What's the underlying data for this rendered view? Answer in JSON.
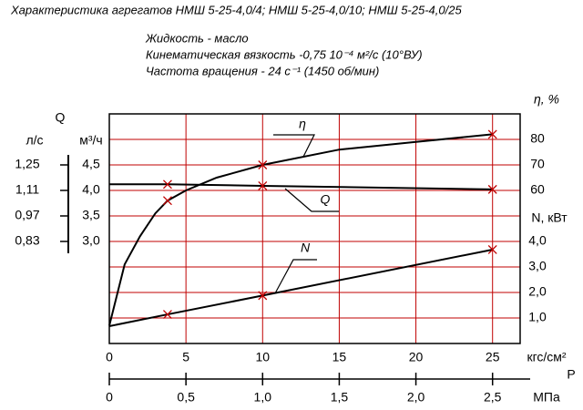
{
  "chart_data": {
    "type": "line",
    "title": "Характеристика агрегатов НМШ 5-25-4,0/4; НМШ 5-25-4,0/10; НМШ 5-25-4,0/25",
    "subtitle": [
      "Жидкость - масло",
      "Кинематическая вязкость -0,75 10⁻⁴ м²/с (10°ВУ)",
      "Частота вращения - 24 с⁻¹ (1450 об/мин)"
    ],
    "grid": true,
    "grid_color": "#c00000",
    "x_label": "кгс/см²",
    "xlim": [
      0,
      26.8
    ],
    "xticks": [
      0,
      5,
      10,
      15,
      20,
      25
    ],
    "p_label": "P",
    "x2_label": "МПа",
    "x2lim": [
      0,
      2.68
    ],
    "x2ticks": [
      0,
      {
        "value": 0.5,
        "label": "0,5"
      },
      {
        "value": 1.0,
        "label": "1,0"
      },
      {
        "value": 1.5,
        "label": "1,5"
      },
      {
        "value": 2.0,
        "label": "2,0"
      },
      {
        "value": 2.5,
        "label": "2,5"
      }
    ],
    "y_axes": [
      {
        "label": "Q",
        "unit": "м³/ч",
        "lim": [
          1.0,
          5.5
        ],
        "ticks": [
          {
            "value": 4.5,
            "label": "4,5"
          },
          {
            "value": 4.0,
            "label": "4,0"
          },
          {
            "value": 3.5,
            "label": "3,5"
          },
          {
            "value": 3.0,
            "label": "3,0"
          }
        ]
      },
      {
        "unit": "л/с",
        "lim": [
          0.27,
          1.53
        ],
        "ticks": [
          {
            "value": 1.25,
            "label": "1,25"
          },
          {
            "value": 1.11,
            "label": "1,11"
          },
          {
            "value": 0.97,
            "label": "0,97"
          },
          {
            "value": 0.83,
            "label": "0,83"
          }
        ]
      },
      {
        "label": "η, %",
        "lim": [
          0,
          90
        ],
        "ticks": [
          80,
          70,
          60
        ]
      },
      {
        "label": "N, кВт",
        "lim": [
          0,
          9
        ],
        "ticks": [
          {
            "value": 4,
            "label": "4,0"
          },
          {
            "value": 3,
            "label": "3,0"
          },
          {
            "value": 2,
            "label": "2,0"
          },
          {
            "value": 1,
            "label": "1,0"
          }
        ]
      }
    ],
    "series": [
      {
        "name": "η",
        "axis": 2,
        "color": "#000000",
        "marker_color": "#c00000",
        "x": [
          0,
          1,
          2,
          3,
          3.8,
          5,
          7,
          10,
          15,
          20,
          25
        ],
        "values": [
          7,
          31,
          42,
          51,
          56,
          60,
          65,
          70,
          76,
          79,
          82
        ],
        "marker_x": [
          3.8,
          10,
          25
        ],
        "marker_values": [
          56,
          70,
          82
        ]
      },
      {
        "name": "Q",
        "axis": 0,
        "color": "#000000",
        "marker_color": "#c00000",
        "x": [
          0,
          3.8,
          10,
          25
        ],
        "values": [
          4.12,
          4.12,
          4.09,
          4.02
        ],
        "marker_x": [
          3.8,
          10,
          25
        ],
        "marker_values": [
          4.12,
          4.09,
          4.02
        ]
      },
      {
        "name": "N",
        "axis": 3,
        "color": "#000000",
        "marker_color": "#c00000",
        "x": [
          0,
          3.8,
          10,
          25
        ],
        "values": [
          0.68,
          1.14,
          1.88,
          3.68
        ],
        "marker_x": [
          3.8,
          10,
          25
        ],
        "marker_values": [
          1.14,
          1.88,
          3.68
        ]
      }
    ]
  }
}
